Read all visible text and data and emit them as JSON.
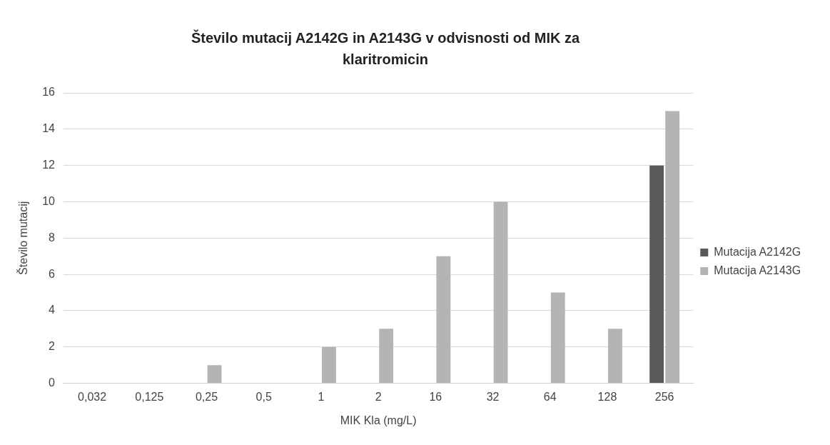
{
  "chart_data": {
    "type": "bar",
    "title": "Število mutacij A2142G in A2143G v odvisnosti od MIK za klaritromicin",
    "xlabel": "MIK Kla (mg/L)",
    "ylabel": "Število mutacij",
    "categories": [
      "0,032",
      "0,125",
      "0,25",
      "0,5",
      "1",
      "2",
      "16",
      "32",
      "64",
      "128",
      "256"
    ],
    "series": [
      {
        "name": "Mutacija A2142G",
        "color": "#595959",
        "values": [
          0,
          0,
          0,
          0,
          0,
          0,
          0,
          0,
          0,
          0,
          12
        ]
      },
      {
        "name": "Mutacija A2143G",
        "color": "#b4b4b4",
        "values": [
          0,
          0,
          1,
          0,
          2,
          3,
          7,
          10,
          5,
          3,
          15
        ]
      }
    ],
    "ylim": [
      0,
      16
    ],
    "yticks": [
      0,
      2,
      4,
      6,
      8,
      10,
      12,
      14,
      16
    ],
    "grid": "y",
    "legend": "right"
  }
}
